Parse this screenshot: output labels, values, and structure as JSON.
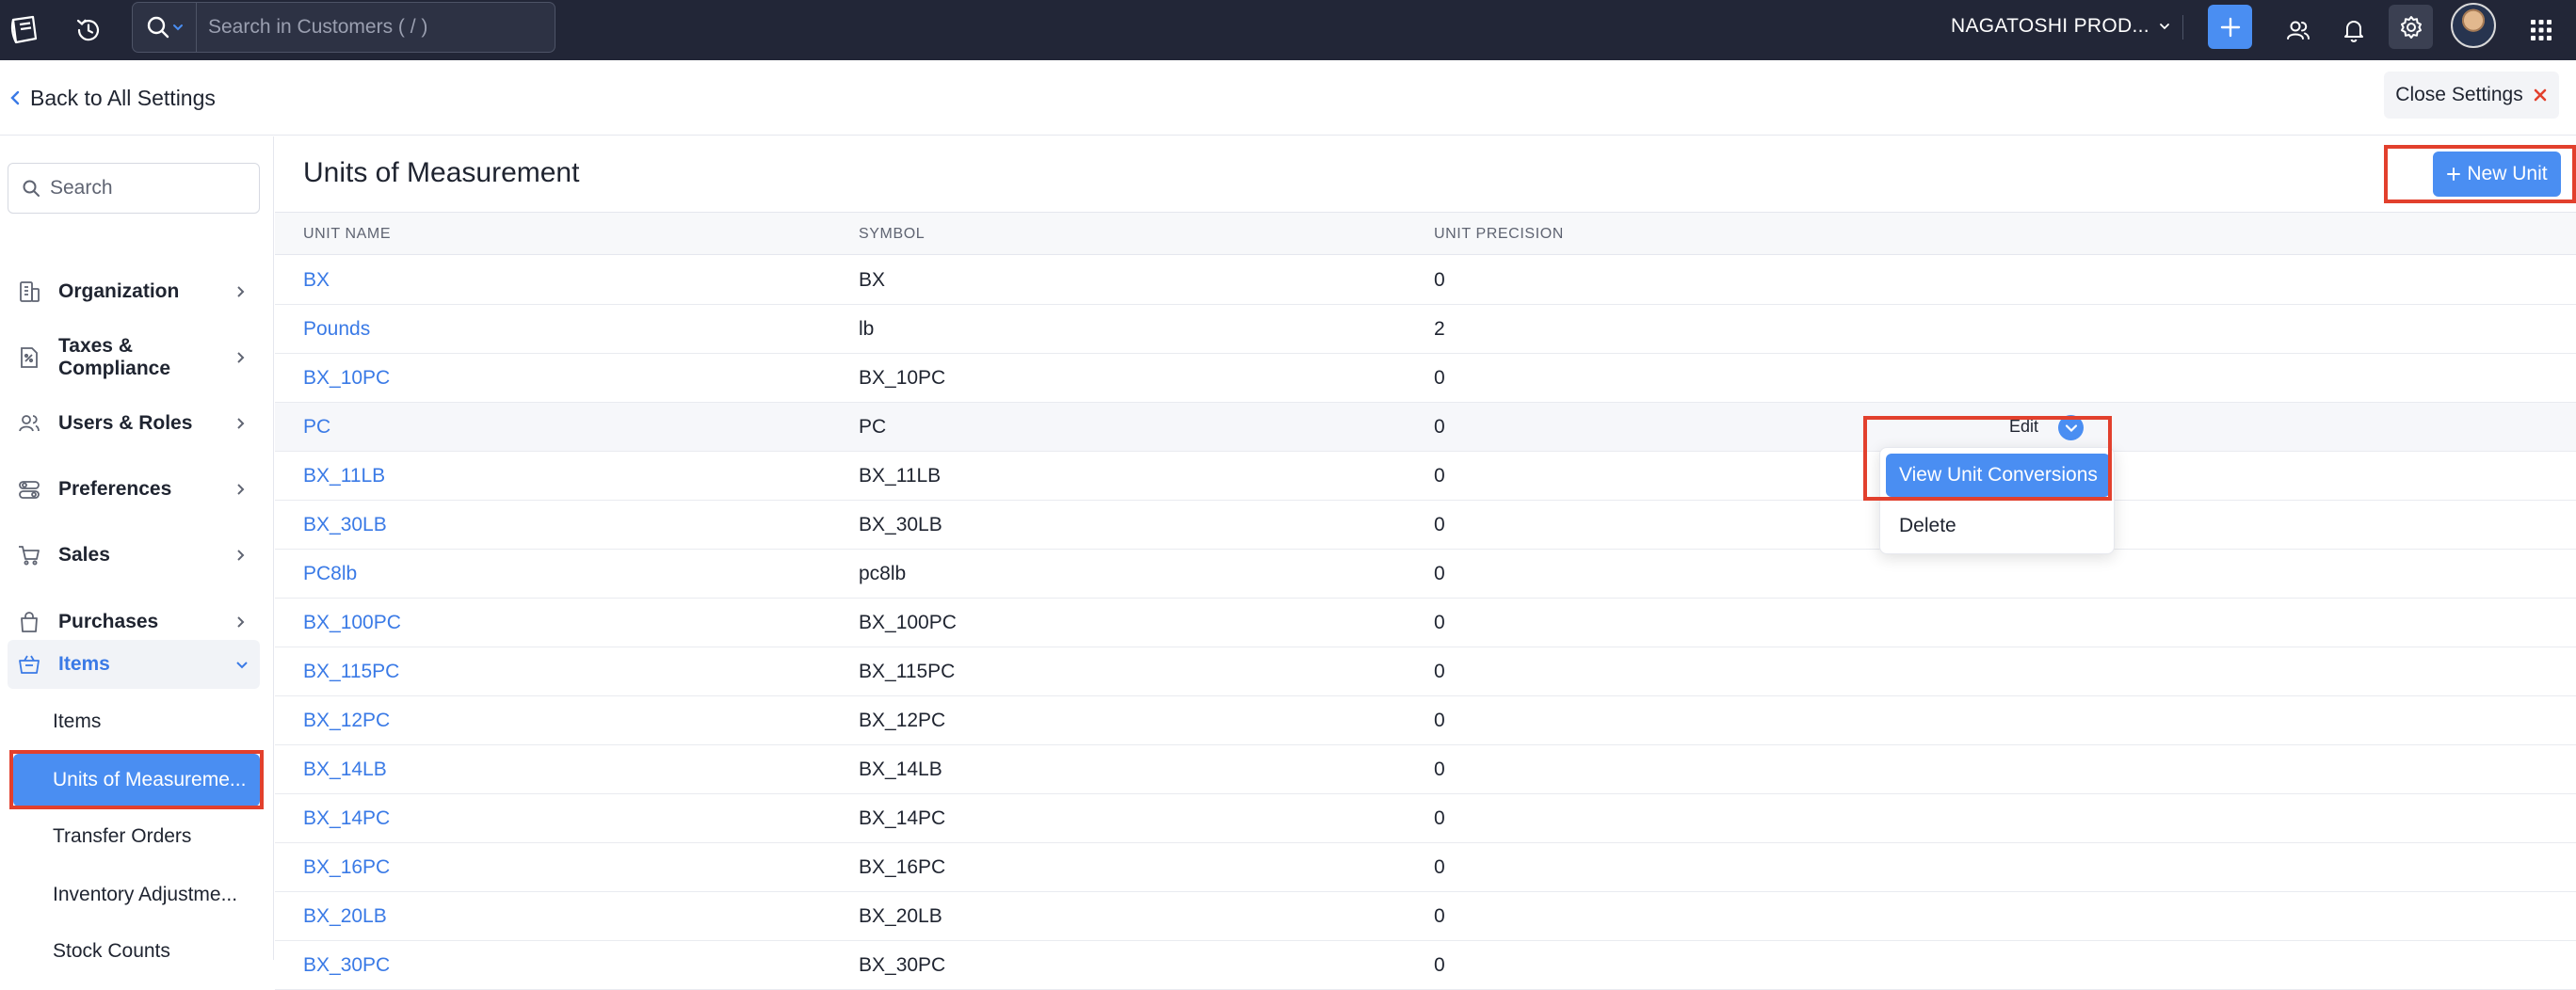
{
  "topbar": {
    "search_placeholder": "Search in Customers ( / )",
    "org_name": "NAGATOSHI PROD..."
  },
  "subheader": {
    "back_label": "Back to All Settings",
    "close_label": "Close Settings"
  },
  "sidebar": {
    "search_placeholder": "Search",
    "items": [
      {
        "label": "Organization",
        "icon": "organization-icon"
      },
      {
        "label": "Taxes & Compliance",
        "icon": "taxes-icon"
      },
      {
        "label": "Users & Roles",
        "icon": "users-icon"
      },
      {
        "label": "Preferences",
        "icon": "preferences-icon"
      },
      {
        "label": "Sales",
        "icon": "cart-icon"
      },
      {
        "label": "Purchases",
        "icon": "bag-icon"
      },
      {
        "label": "Items",
        "icon": "items-icon"
      }
    ],
    "sub_items": [
      "Items",
      "Units of Measureme...",
      "Transfer Orders",
      "Inventory Adjustme...",
      "Stock Counts"
    ]
  },
  "main": {
    "title": "Units of Measurement",
    "new_button": "New Unit",
    "columns": [
      "UNIT NAME",
      "SYMBOL",
      "UNIT PRECISION"
    ],
    "rows": [
      {
        "name": "BX",
        "symbol": "BX",
        "precision": "0"
      },
      {
        "name": "Pounds",
        "symbol": "lb",
        "precision": "2"
      },
      {
        "name": "BX_10PC",
        "symbol": "BX_10PC",
        "precision": "0"
      },
      {
        "name": "PC",
        "symbol": "PC",
        "precision": "0"
      },
      {
        "name": "BX_11LB",
        "symbol": "BX_11LB",
        "precision": "0"
      },
      {
        "name": "BX_30LB",
        "symbol": "BX_30LB",
        "precision": "0"
      },
      {
        "name": "PC8lb",
        "symbol": "pc8lb",
        "precision": "0"
      },
      {
        "name": "BX_100PC",
        "symbol": "BX_100PC",
        "precision": "0"
      },
      {
        "name": "BX_115PC",
        "symbol": "BX_115PC",
        "precision": "0"
      },
      {
        "name": "BX_12PC",
        "symbol": "BX_12PC",
        "precision": "0"
      },
      {
        "name": "BX_14LB",
        "symbol": "BX_14LB",
        "precision": "0"
      },
      {
        "name": "BX_14PC",
        "symbol": "BX_14PC",
        "precision": "0"
      },
      {
        "name": "BX_16PC",
        "symbol": "BX_16PC",
        "precision": "0"
      },
      {
        "name": "BX_20LB",
        "symbol": "BX_20LB",
        "precision": "0"
      },
      {
        "name": "BX_30PC",
        "symbol": "BX_30PC",
        "precision": "0"
      }
    ],
    "row_actions": {
      "edit_label": "Edit",
      "menu": [
        "View Unit Conversions",
        "Delete"
      ]
    }
  },
  "colors": {
    "topbar_bg": "#222637",
    "accent": "#4a8ef2",
    "link": "#3a7ae6",
    "annotation": "#e2402d"
  }
}
